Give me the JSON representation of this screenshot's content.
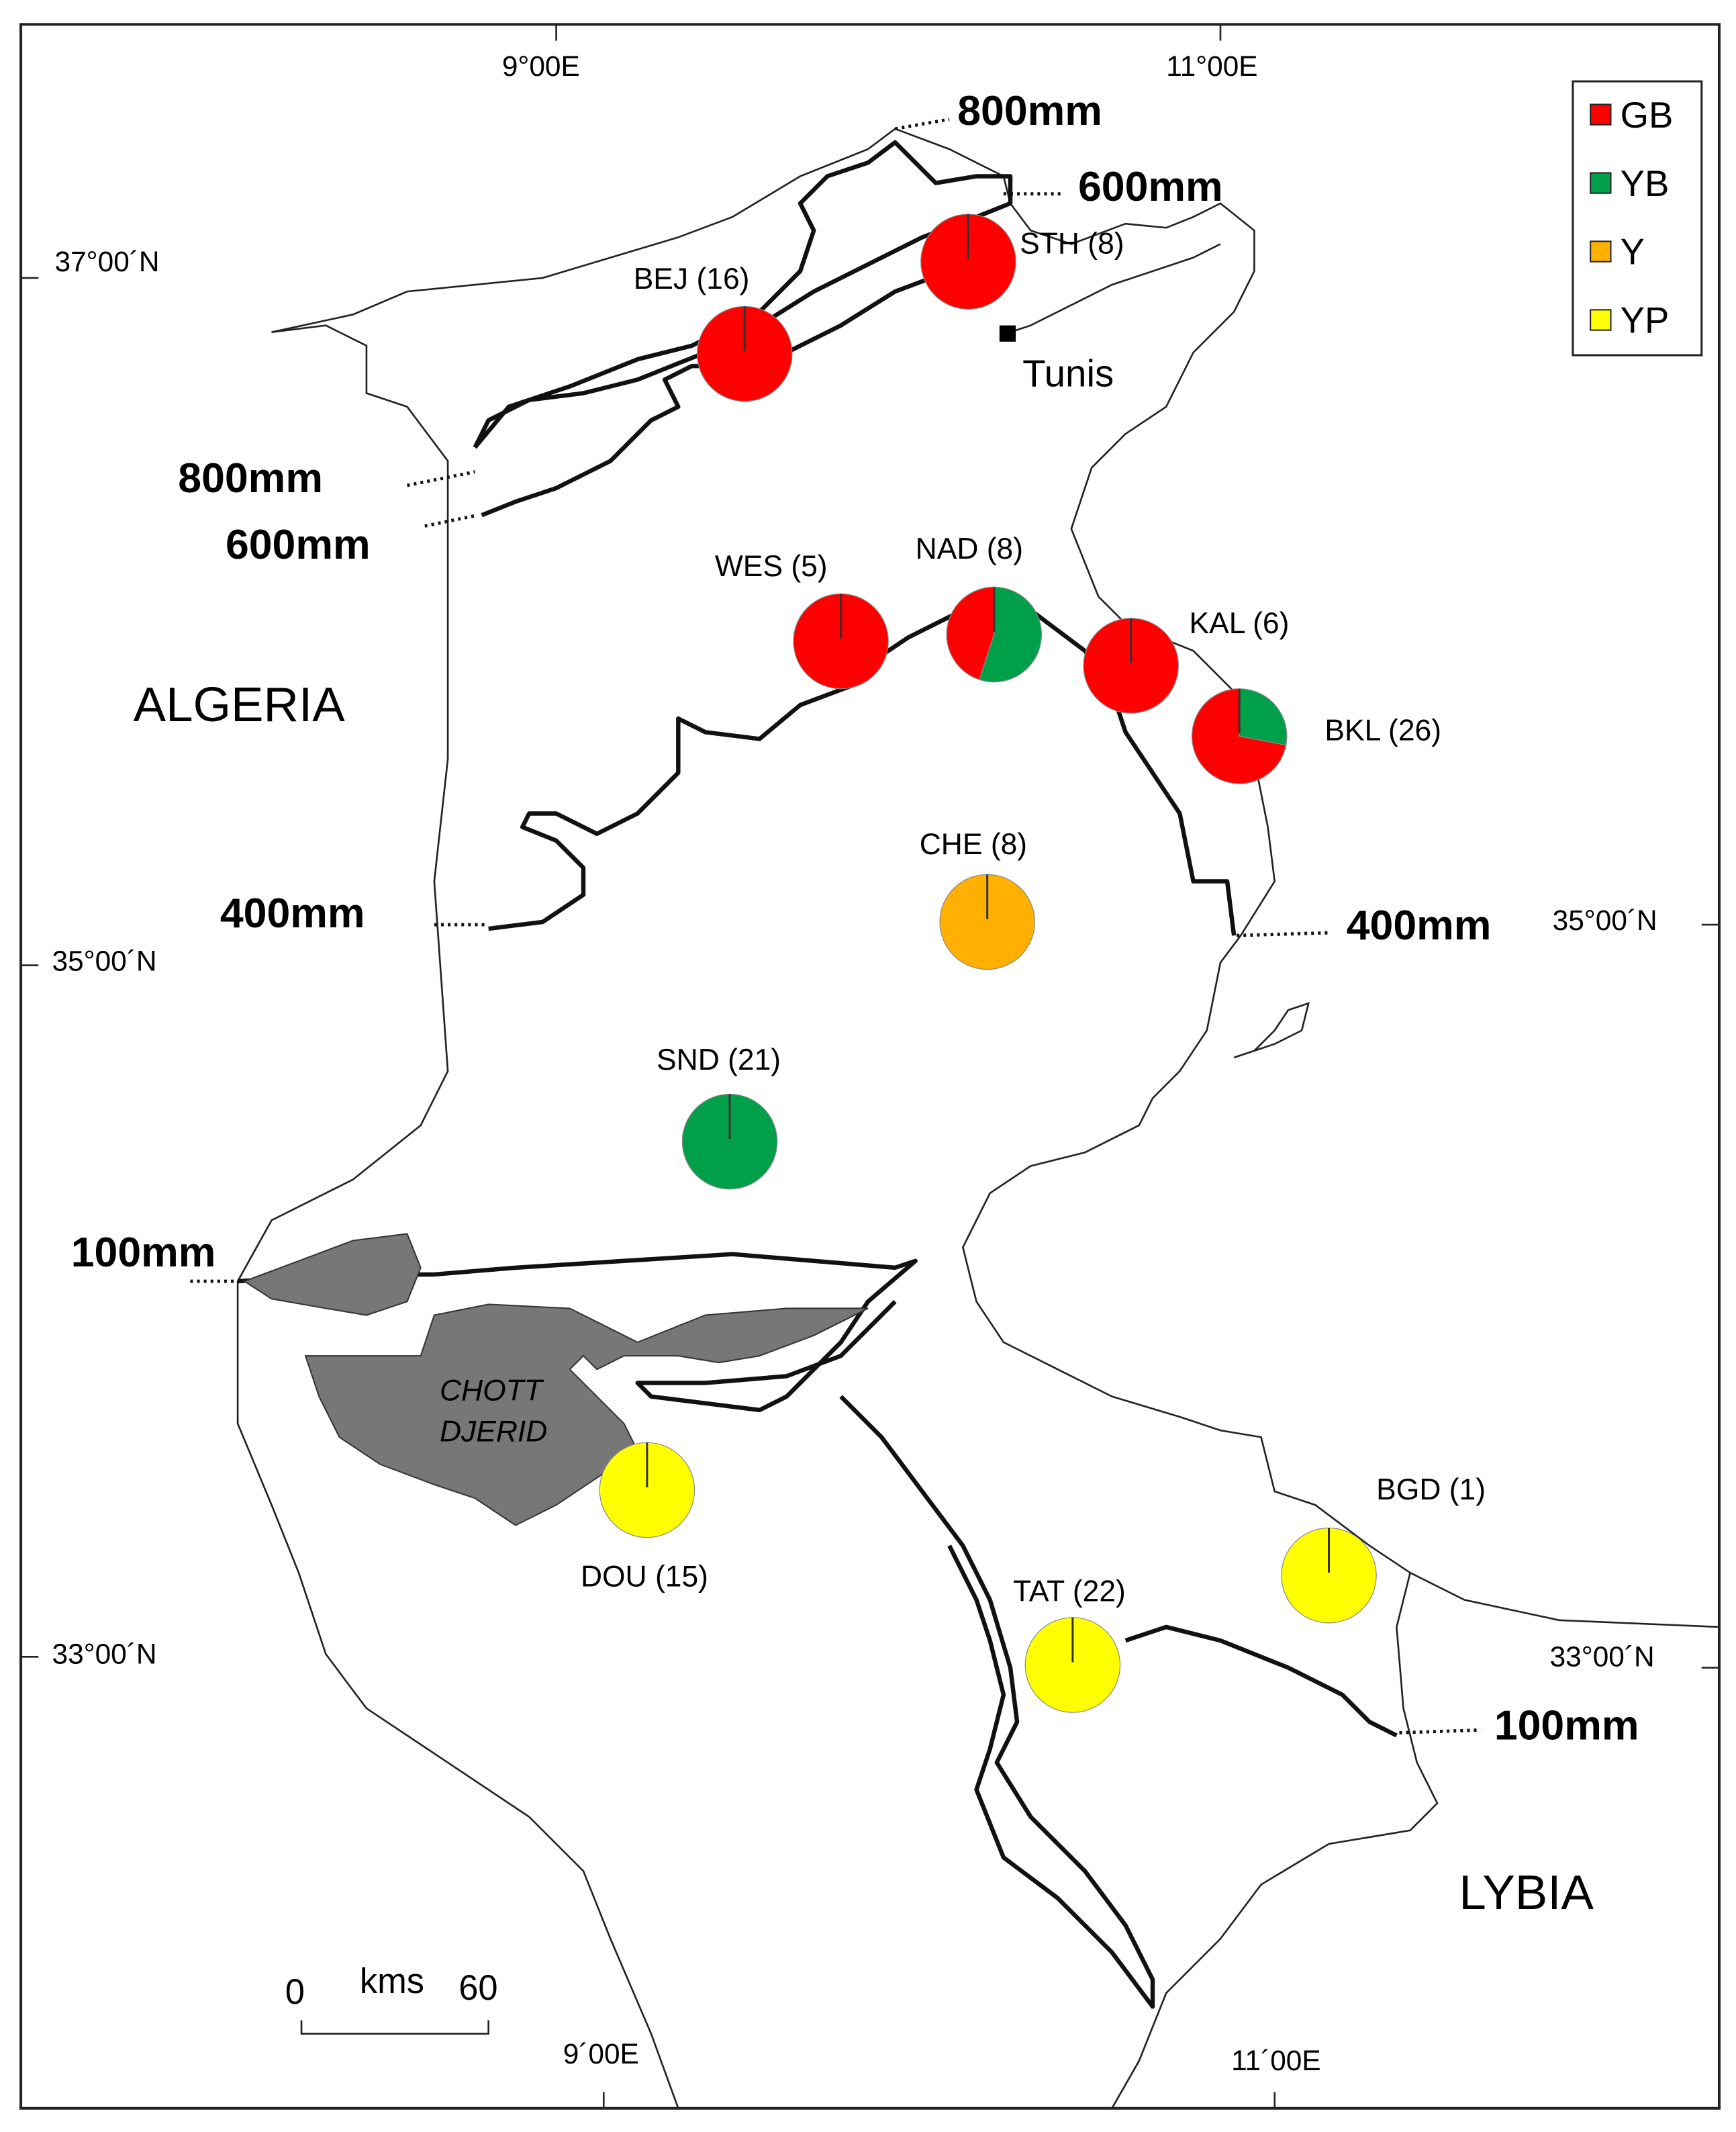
{
  "legend": [
    {
      "name": "GB",
      "color": "#ff0000"
    },
    {
      "name": "YB",
      "color": "#00a04a"
    },
    {
      "name": "Y",
      "color": "#ffb000"
    },
    {
      "name": "YP",
      "color": "#ffff00"
    }
  ],
  "sites": [
    {
      "label": "BEJ (16)",
      "shares": [
        100,
        0,
        0,
        0
      ]
    },
    {
      "label": "STH (8)",
      "shares": [
        100,
        0,
        0,
        0
      ]
    },
    {
      "label": "WES (5)",
      "shares": [
        100,
        0,
        0,
        0
      ]
    },
    {
      "label": "NAD (8)",
      "shares": [
        45,
        55,
        0,
        0
      ]
    },
    {
      "label": "KAL (6)",
      "shares": [
        100,
        0,
        0,
        0
      ]
    },
    {
      "label": "BKL (26)",
      "shares": [
        72,
        28,
        0,
        0
      ]
    },
    {
      "label": "CHE  (8)",
      "shares": [
        0,
        0,
        100,
        0
      ]
    },
    {
      "label": "SND  (21)",
      "shares": [
        0,
        100,
        0,
        0
      ]
    },
    {
      "label": "DOU  (15)",
      "shares": [
        0,
        0,
        0,
        100
      ]
    },
    {
      "label": "TAT  (22)",
      "shares": [
        0,
        0,
        0,
        100
      ]
    },
    {
      "label": "BGD  (1)",
      "shares": [
        0,
        0,
        0,
        100
      ]
    }
  ],
  "isohyets": [
    "800mm",
    "600mm",
    "800mm",
    "600mm",
    "400mm",
    "400mm",
    "100mm",
    "100mm"
  ],
  "countries": [
    "ALGERIA",
    "LYBIA"
  ],
  "city": "Tunis",
  "lake": [
    "CHOTT",
    "DJERID"
  ],
  "coordinates": [
    "9°00E",
    "11°00E",
    "37°00´N",
    "35°00´N",
    "33°00´N",
    "35°00´N",
    "33°00´N",
    "9´00E",
    "11´00E"
  ],
  "scale": {
    "start": "0",
    "unit": "kms",
    "end": "60"
  }
}
